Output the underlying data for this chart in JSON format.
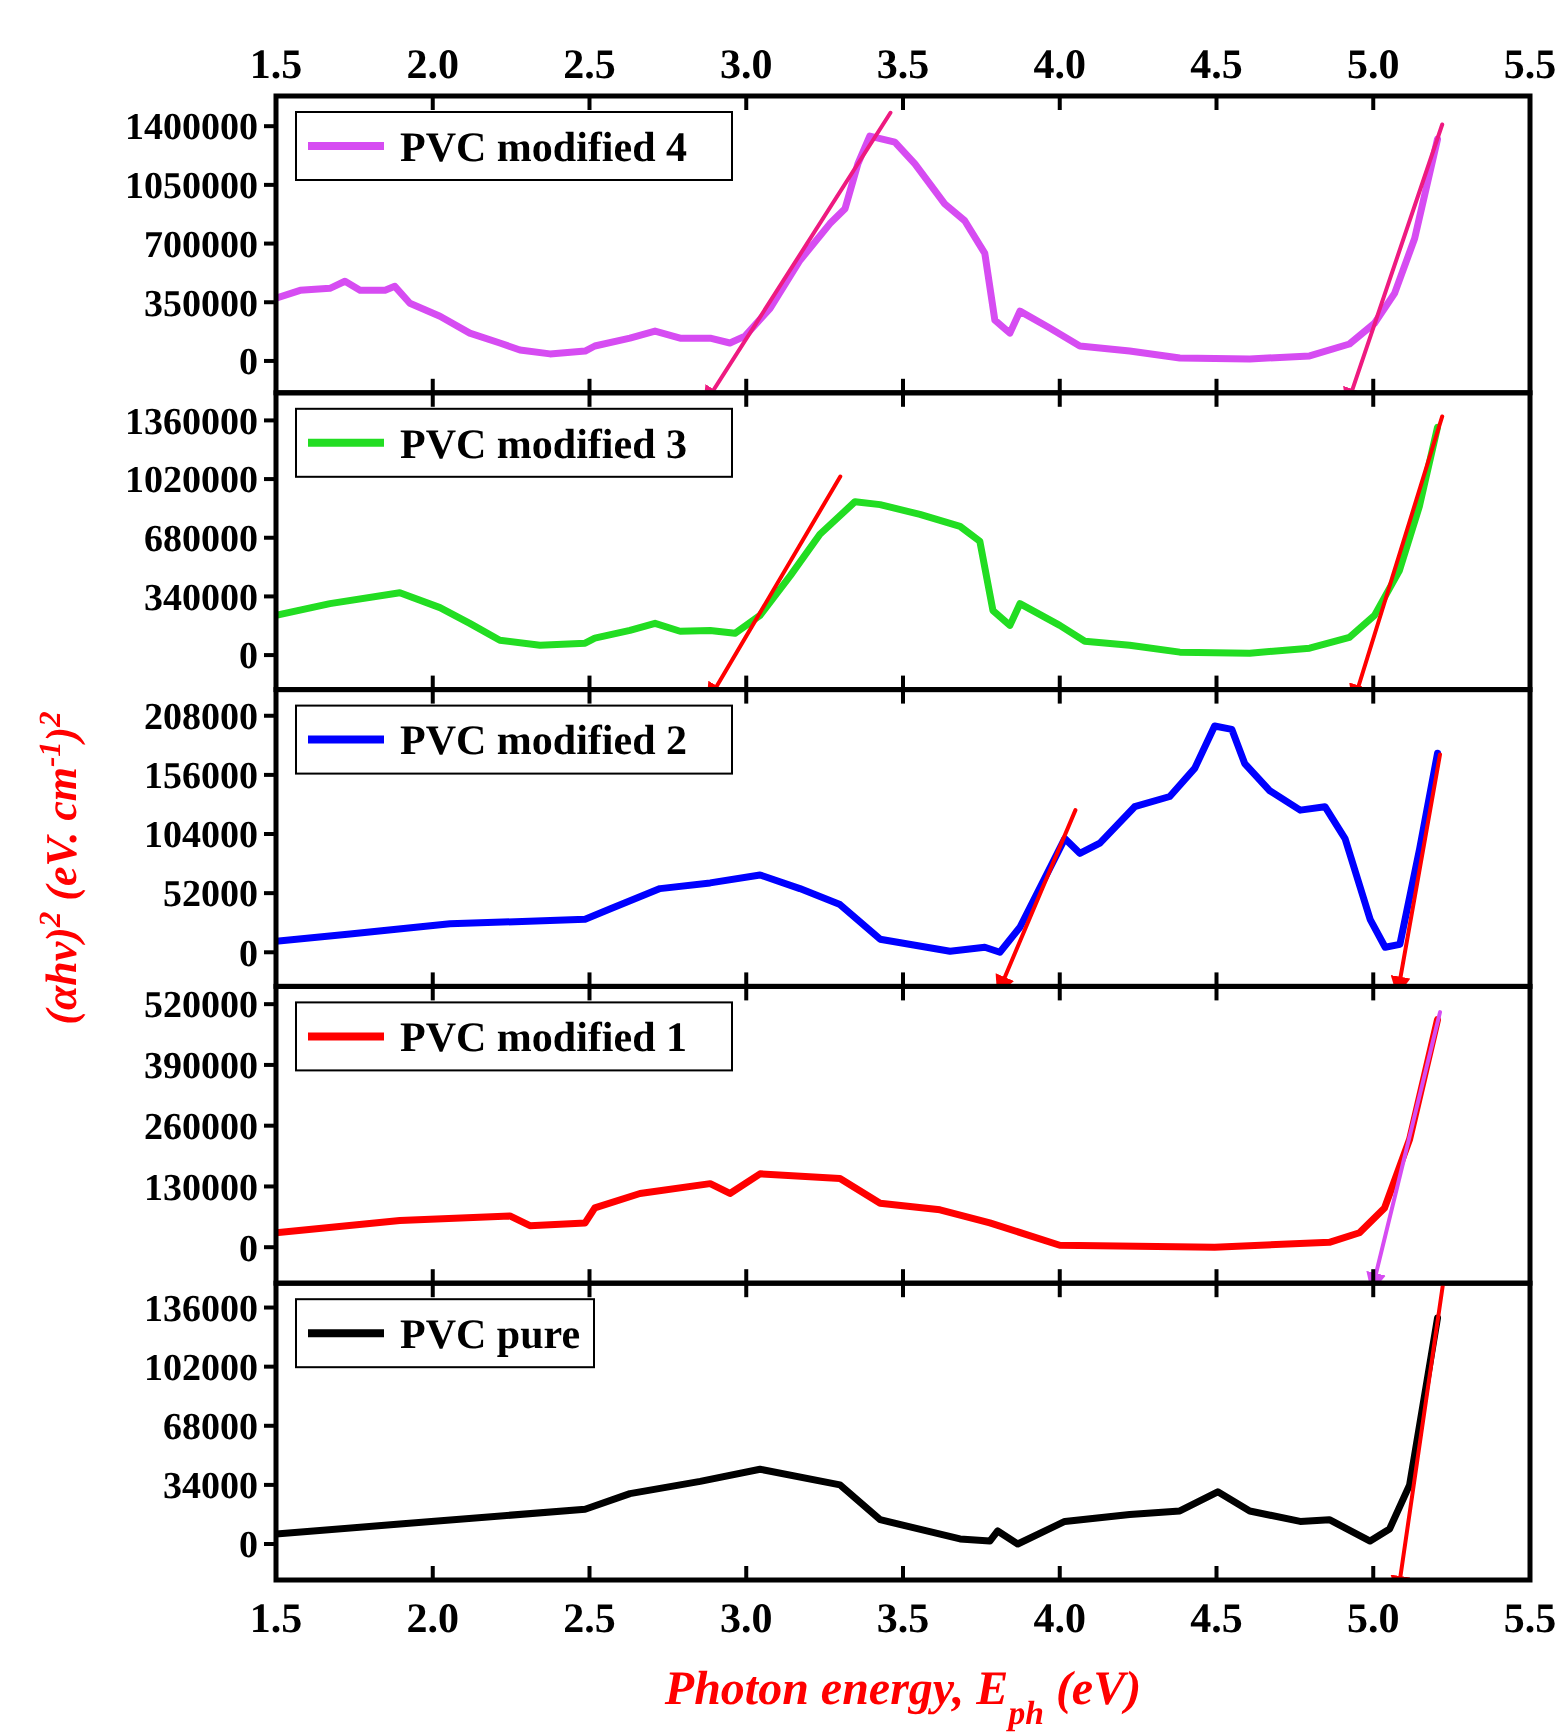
{
  "chart_data": [
    {
      "type": "line",
      "xlim": [
        1.5,
        5.5
      ],
      "xticks": [
        1.5,
        2.0,
        2.5,
        3.0,
        3.5,
        4.0,
        4.5,
        5.0,
        5.5
      ],
      "x2lim": [
        1.5,
        5.5
      ],
      "x2ticks": [
        {
          "value": 1.5,
          "label": "1.5"
        },
        {
          "value": 2,
          "label": "2.0"
        },
        {
          "value": 2.5,
          "label": "2.5"
        },
        {
          "value": 3,
          "label": "3.0"
        },
        {
          "value": 3.5,
          "label": "3.5"
        },
        {
          "value": 4,
          "label": "4.0"
        },
        {
          "value": 4.5,
          "label": "4.5"
        },
        {
          "value": 5,
          "label": "5.0"
        },
        {
          "value": 5.5,
          "label": "5.5"
        }
      ],
      "ylim": [
        -190000,
        1580000
      ],
      "yticks": [
        0,
        350000,
        700000,
        1050000,
        1400000
      ],
      "tick_labels": "y",
      "legend": "top left",
      "series": [
        {
          "name": "PVC modified 4",
          "color": "#d64cf2",
          "x": [
            1.5,
            1.577,
            1.672,
            1.72,
            1.768,
            1.848,
            1.879,
            1.927,
            2.023,
            2.118,
            2.214,
            2.278,
            2.374,
            2.486,
            2.517,
            2.629,
            2.709,
            2.789,
            2.885,
            2.948,
            2.996,
            3.076,
            3.171,
            3.267,
            3.315,
            3.356,
            3.394,
            3.474,
            3.538,
            3.633,
            3.697,
            3.761,
            3.793,
            3.841,
            3.873,
            3.968,
            4.064,
            4.223,
            4.383,
            4.606,
            4.797,
            4.924,
            5.004,
            5.068,
            5.132,
            5.205
          ],
          "values": [
            374000,
            421000,
            433000,
            475000,
            421000,
            421000,
            445000,
            344000,
            267000,
            166000,
            107000,
            65000,
            42000,
            59000,
            89000,
            136000,
            178000,
            136000,
            136000,
            107000,
            148000,
            314000,
            599000,
            819000,
            908000,
            1175000,
            1341000,
            1305000,
            1175000,
            937000,
            836000,
            641000,
            243000,
            166000,
            297000,
            196000,
            89000,
            59000,
            18000,
            12000,
            30000,
            101000,
            225000,
            403000,
            730000,
            1323000
          ]
        },
        {
          "type": "line",
          "color": "#ee1a80",
          "x": [
            2.89,
            3.46
          ],
          "values": [
            -190000,
            1480000
          ]
        },
        {
          "type": "line",
          "color": "#ee1a80",
          "x": [
            4.93,
            5.22
          ],
          "values": [
            -190000,
            1410000
          ]
        }
      ]
    },
    {
      "type": "line",
      "xlim": [
        1.5,
        5.5
      ],
      "xticks": [
        1.5,
        2.0,
        2.5,
        3.0,
        3.5,
        4.0,
        4.5,
        5.0,
        5.5
      ],
      "ylim": [
        -200000,
        1520000
      ],
      "yticks": [
        0,
        340000,
        680000,
        1020000,
        1360000
      ],
      "tick_labels": "y",
      "legend": "top left",
      "series": [
        {
          "name": "PVC modified 3",
          "color": "#22dd22",
          "x": [
            1.5,
            1.672,
            1.895,
            2.023,
            2.118,
            2.214,
            2.342,
            2.486,
            2.517,
            2.629,
            2.709,
            2.789,
            2.885,
            2.964,
            3.044,
            3.14,
            3.235,
            3.347,
            3.427,
            3.554,
            3.682,
            3.745,
            3.787,
            3.841,
            3.873,
            4.0,
            4.08,
            4.223,
            4.383,
            4.606,
            4.797,
            4.924,
            5.004,
            5.083,
            5.147,
            5.205
          ],
          "values": [
            230000,
            298000,
            361000,
            275000,
            184000,
            86000,
            57000,
            69000,
            98000,
            143000,
            184000,
            138000,
            143000,
            126000,
            230000,
            459000,
            700000,
            889000,
            872000,
            815000,
            746000,
            660000,
            258000,
            172000,
            298000,
            172000,
            80000,
            57000,
            17000,
            11000,
            40000,
            103000,
            230000,
            488000,
            861000,
            1320000
          ]
        },
        {
          "type": "line",
          "color": "#ff0000",
          "x": [
            2.9,
            3.3
          ],
          "values": [
            -198000,
            1035000
          ]
        },
        {
          "type": "line",
          "color": "#ff0000",
          "x": [
            4.95,
            5.22
          ],
          "values": [
            -198000,
            1383000
          ]
        }
      ]
    },
    {
      "type": "line",
      "xlim": [
        1.5,
        5.5
      ],
      "xticks": [
        1.5,
        2.0,
        2.5,
        3.0,
        3.5,
        4.0,
        4.5,
        5.0,
        5.5
      ],
      "ylim": [
        -30000,
        231000
      ],
      "yticks": [
        0,
        52000,
        104000,
        156000,
        208000
      ],
      "tick_labels": "y",
      "legend": "top left",
      "ylabel": "(αhν)$^{2}$ (eV. cm$^{-1}$)$^{2}$",
      "series": [
        {
          "name": "PVC modified 2",
          "color": "#0000ff",
          "x": [
            1.5,
            1.736,
            2.055,
            2.486,
            2.565,
            2.725,
            2.885,
            3.044,
            3.171,
            3.299,
            3.427,
            3.65,
            3.761,
            3.809,
            3.873,
            3.952,
            4.016,
            4.064,
            4.128,
            4.239,
            4.351,
            4.431,
            4.494,
            4.549,
            4.59,
            4.67,
            4.767,
            4.846,
            4.91,
            4.99,
            5.038,
            5.085,
            5.148,
            5.205
          ],
          "values": [
            9700,
            16000,
            25000,
            29000,
            38000,
            56000,
            61000,
            68000,
            56000,
            42000,
            11500,
            900,
            4400,
            0,
            22000,
            65000,
            100000,
            87000,
            96000,
            128000,
            137000,
            162000,
            199000,
            196000,
            166000,
            142000,
            125000,
            128000,
            100000,
            29000,
            4400,
            7000,
            91000,
            175000
          ]
        },
        {
          "type": "line",
          "color": "#ff0000",
          "x": [
            3.82,
            4.05
          ],
          "values": [
            -25000,
            125000
          ]
        },
        {
          "type": "line",
          "color": "#ff0000",
          "x": [
            5.085,
            5.213
          ],
          "values": [
            -25000,
            174000
          ]
        }
      ]
    },
    {
      "type": "line",
      "xlim": [
        1.5,
        5.5
      ],
      "xticks": [
        1.5,
        2.0,
        2.5,
        3.0,
        3.5,
        4.0,
        4.5,
        5.0,
        5.5
      ],
      "ylim": [
        -77000,
        558000
      ],
      "yticks": [
        0,
        130000,
        260000,
        390000,
        520000
      ],
      "tick_labels": "y",
      "legend": "top left",
      "series": [
        {
          "name": "PVC modified 1",
          "color": "#ff0000",
          "x": [
            1.5,
            1.895,
            2.246,
            2.31,
            2.486,
            2.517,
            2.661,
            2.885,
            2.948,
            3.044,
            3.299,
            3.427,
            3.618,
            3.777,
            4.0,
            4.494,
            4.86,
            4.956,
            5.036,
            5.116,
            5.205
          ],
          "values": [
            31000,
            57000,
            67000,
            46000,
            52000,
            84000,
            115000,
            136000,
            115000,
            157000,
            147000,
            94000,
            80000,
            52000,
            4200,
            0,
            10500,
            31000,
            84000,
            231000,
            487000
          ]
        },
        {
          "type": "line",
          "color": "#d64cf2",
          "x": [
            5.006,
            5.213
          ],
          "values": [
            -64000,
            503000
          ]
        }
      ]
    },
    {
      "type": "line",
      "xlim": [
        1.5,
        5.5
      ],
      "xticks": [
        {
          "value": 1.5,
          "label": "1.5"
        },
        {
          "value": 2,
          "label": "2.0"
        },
        {
          "value": 2.5,
          "label": "2.5"
        },
        {
          "value": 3,
          "label": "3.0"
        },
        {
          "value": 3.5,
          "label": "3.5"
        },
        {
          "value": 4,
          "label": "4.0"
        },
        {
          "value": 4.5,
          "label": "4.5"
        },
        {
          "value": 5,
          "label": "5.0"
        },
        {
          "value": 5.5,
          "label": "5.5"
        }
      ],
      "ylim": [
        -20700,
        150000
      ],
      "yticks": [
        0,
        34000,
        68000,
        102000,
        136000
      ],
      "legend": "top left",
      "xlabel": "Photon energy, E$_{ph}$ (eV)",
      "series": [
        {
          "name": "PVC pure",
          "color": "#000000",
          "x": [
            1.5,
            1.895,
            2.486,
            2.629,
            2.853,
            3.044,
            3.299,
            3.427,
            3.682,
            3.777,
            3.802,
            3.866,
            4.016,
            4.223,
            4.383,
            4.504,
            4.606,
            4.767,
            4.86,
            4.99,
            5.052,
            5.116,
            5.205
          ],
          "values": [
            5700,
            11500,
            20000,
            29000,
            36000,
            43000,
            34000,
            14000,
            2900,
            1700,
            7500,
            0,
            13000,
            17000,
            19000,
            30000,
            19000,
            13000,
            14000,
            1700,
            8600,
            34000,
            130000
          ]
        },
        {
          "type": "line",
          "color": "#ff0000",
          "x": [
            5.085,
            5.222
          ],
          "values": [
            -20700,
            149000
          ]
        }
      ]
    }
  ]
}
